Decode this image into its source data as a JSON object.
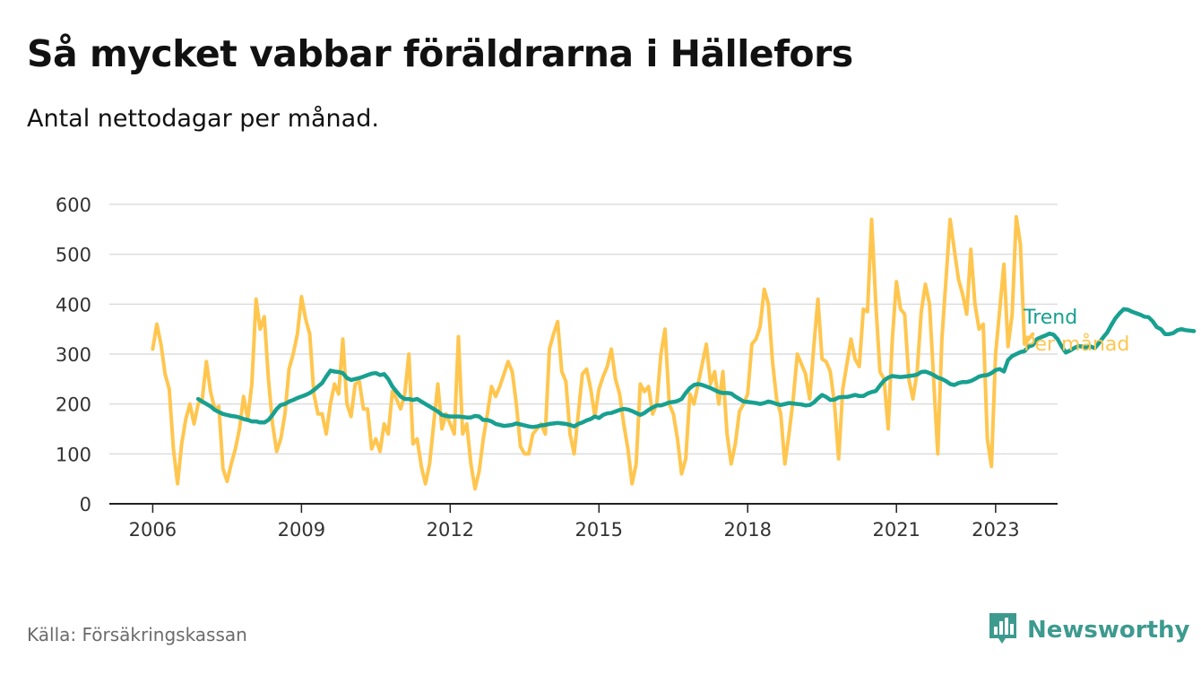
{
  "title": "Så mycket vabbar föräldrarna i Hällefors",
  "subtitle": "Antal nettodagar per månad.",
  "source": "Källa: Försäkringskassan",
  "brand": {
    "name": "Newsworthy",
    "icon": "bar-chart-speech-bubble-icon",
    "color": "#3d9a8e"
  },
  "chart_data": {
    "type": "line",
    "x_ticks": [
      2006,
      2009,
      2012,
      2015,
      2018,
      2021,
      2023
    ],
    "y_ticks": [
      0,
      100,
      200,
      300,
      400,
      500,
      600
    ],
    "ylim": [
      0,
      600
    ],
    "xlim": [
      2005.125,
      2024.25
    ],
    "grid": true,
    "legend": "inline-right",
    "series": [
      {
        "name": "Per månad",
        "color": "#ffc64f",
        "start": 2006.0,
        "step": 0.0833333,
        "values": [
          310,
          360,
          320,
          260,
          230,
          110,
          40,
          120,
          170,
          200,
          160,
          200,
          210,
          285,
          225,
          190,
          195,
          70,
          45,
          80,
          110,
          150,
          215,
          170,
          240,
          410,
          350,
          375,
          250,
          160,
          105,
          130,
          180,
          270,
          300,
          340,
          415,
          370,
          340,
          220,
          180,
          180,
          140,
          200,
          240,
          220,
          330,
          200,
          175,
          240,
          245,
          190,
          190,
          110,
          130,
          105,
          160,
          140,
          225,
          210,
          190,
          220,
          300,
          120,
          130,
          75,
          40,
          80,
          160,
          240,
          150,
          180,
          160,
          140,
          335,
          140,
          160,
          80,
          30,
          65,
          130,
          180,
          235,
          215,
          235,
          260,
          285,
          265,
          200,
          115,
          100,
          100,
          140,
          150,
          160,
          140,
          310,
          340,
          365,
          265,
          245,
          140,
          100,
          180,
          260,
          270,
          230,
          175,
          230,
          255,
          275,
          310,
          250,
          220,
          160,
          110,
          40,
          80,
          240,
          225,
          235,
          180,
          200,
          300,
          350,
          200,
          180,
          130,
          60,
          90,
          220,
          200,
          240,
          280,
          320,
          240,
          265,
          200,
          265,
          140,
          80,
          120,
          185,
          200,
          220,
          320,
          330,
          355,
          430,
          400,
          285,
          210,
          180,
          80,
          140,
          210,
          300,
          280,
          260,
          210,
          315,
          410,
          290,
          285,
          265,
          200,
          90,
          230,
          280,
          330,
          290,
          275,
          390,
          385,
          570,
          400,
          265,
          250,
          150,
          330,
          445,
          390,
          380,
          250,
          210,
          265,
          385,
          440,
          400,
          250,
          100,
          330,
          450,
          570,
          510,
          450,
          420,
          380,
          510,
          400,
          350,
          360,
          130,
          75,
          300,
          390,
          480,
          315,
          380,
          575,
          520,
          320,
          330,
          340
        ]
      },
      {
        "name": "Trend",
        "color": "#18a090",
        "start": 2006.917,
        "step": 0.0833333,
        "values": [
          210,
          205,
          200,
          195,
          188,
          184,
          180,
          178,
          176,
          175,
          173,
          170,
          168,
          165,
          165,
          163,
          163,
          168,
          178,
          190,
          198,
          200,
          205,
          208,
          212,
          215,
          218,
          222,
          228,
          235,
          242,
          255,
          267,
          265,
          264,
          262,
          252,
          248,
          250,
          252,
          255,
          258,
          261,
          262,
          258,
          260,
          250,
          235,
          225,
          215,
          210,
          210,
          208,
          210,
          205,
          200,
          195,
          190,
          185,
          178,
          176,
          175,
          175,
          175,
          174,
          173,
          173,
          176,
          175,
          168,
          168,
          165,
          160,
          158,
          156,
          157,
          158,
          161,
          159,
          157,
          155,
          154,
          155,
          157,
          158,
          160,
          161,
          162,
          161,
          160,
          158,
          155,
          160,
          163,
          167,
          170,
          175,
          172,
          178,
          181,
          182,
          185,
          188,
          190,
          189,
          186,
          182,
          178,
          182,
          188,
          193,
          197,
          197,
          200,
          203,
          204,
          206,
          210,
          222,
          232,
          238,
          240,
          238,
          235,
          232,
          228,
          224,
          222,
          222,
          221,
          215,
          210,
          205,
          204,
          203,
          202,
          200,
          202,
          205,
          203,
          200,
          198,
          200,
          202,
          201,
          200,
          199,
          197,
          198,
          203,
          211,
          218,
          214,
          208,
          209,
          213,
          214,
          214,
          216,
          218,
          216,
          216,
          221,
          224,
          226,
          237,
          247,
          253,
          256,
          255,
          254,
          255,
          256,
          257,
          259,
          264,
          265,
          262,
          258,
          253,
          250,
          246,
          240,
          238,
          242,
          244,
          244,
          246,
          250,
          255,
          257,
          258,
          262,
          268,
          270,
          265,
          288,
          296,
          300,
          304,
          306,
          315,
          318,
          330,
          334,
          337,
          341,
          339,
          330,
          315,
          303,
          307,
          312,
          316,
          315,
          313,
          315,
          312,
          322,
          333,
          343,
          358,
          372,
          382,
          390,
          389,
          385,
          382,
          379,
          375,
          374,
          366,
          354,
          350,
          340,
          340,
          342,
          348,
          350,
          348,
          347,
          346
        ]
      }
    ]
  }
}
